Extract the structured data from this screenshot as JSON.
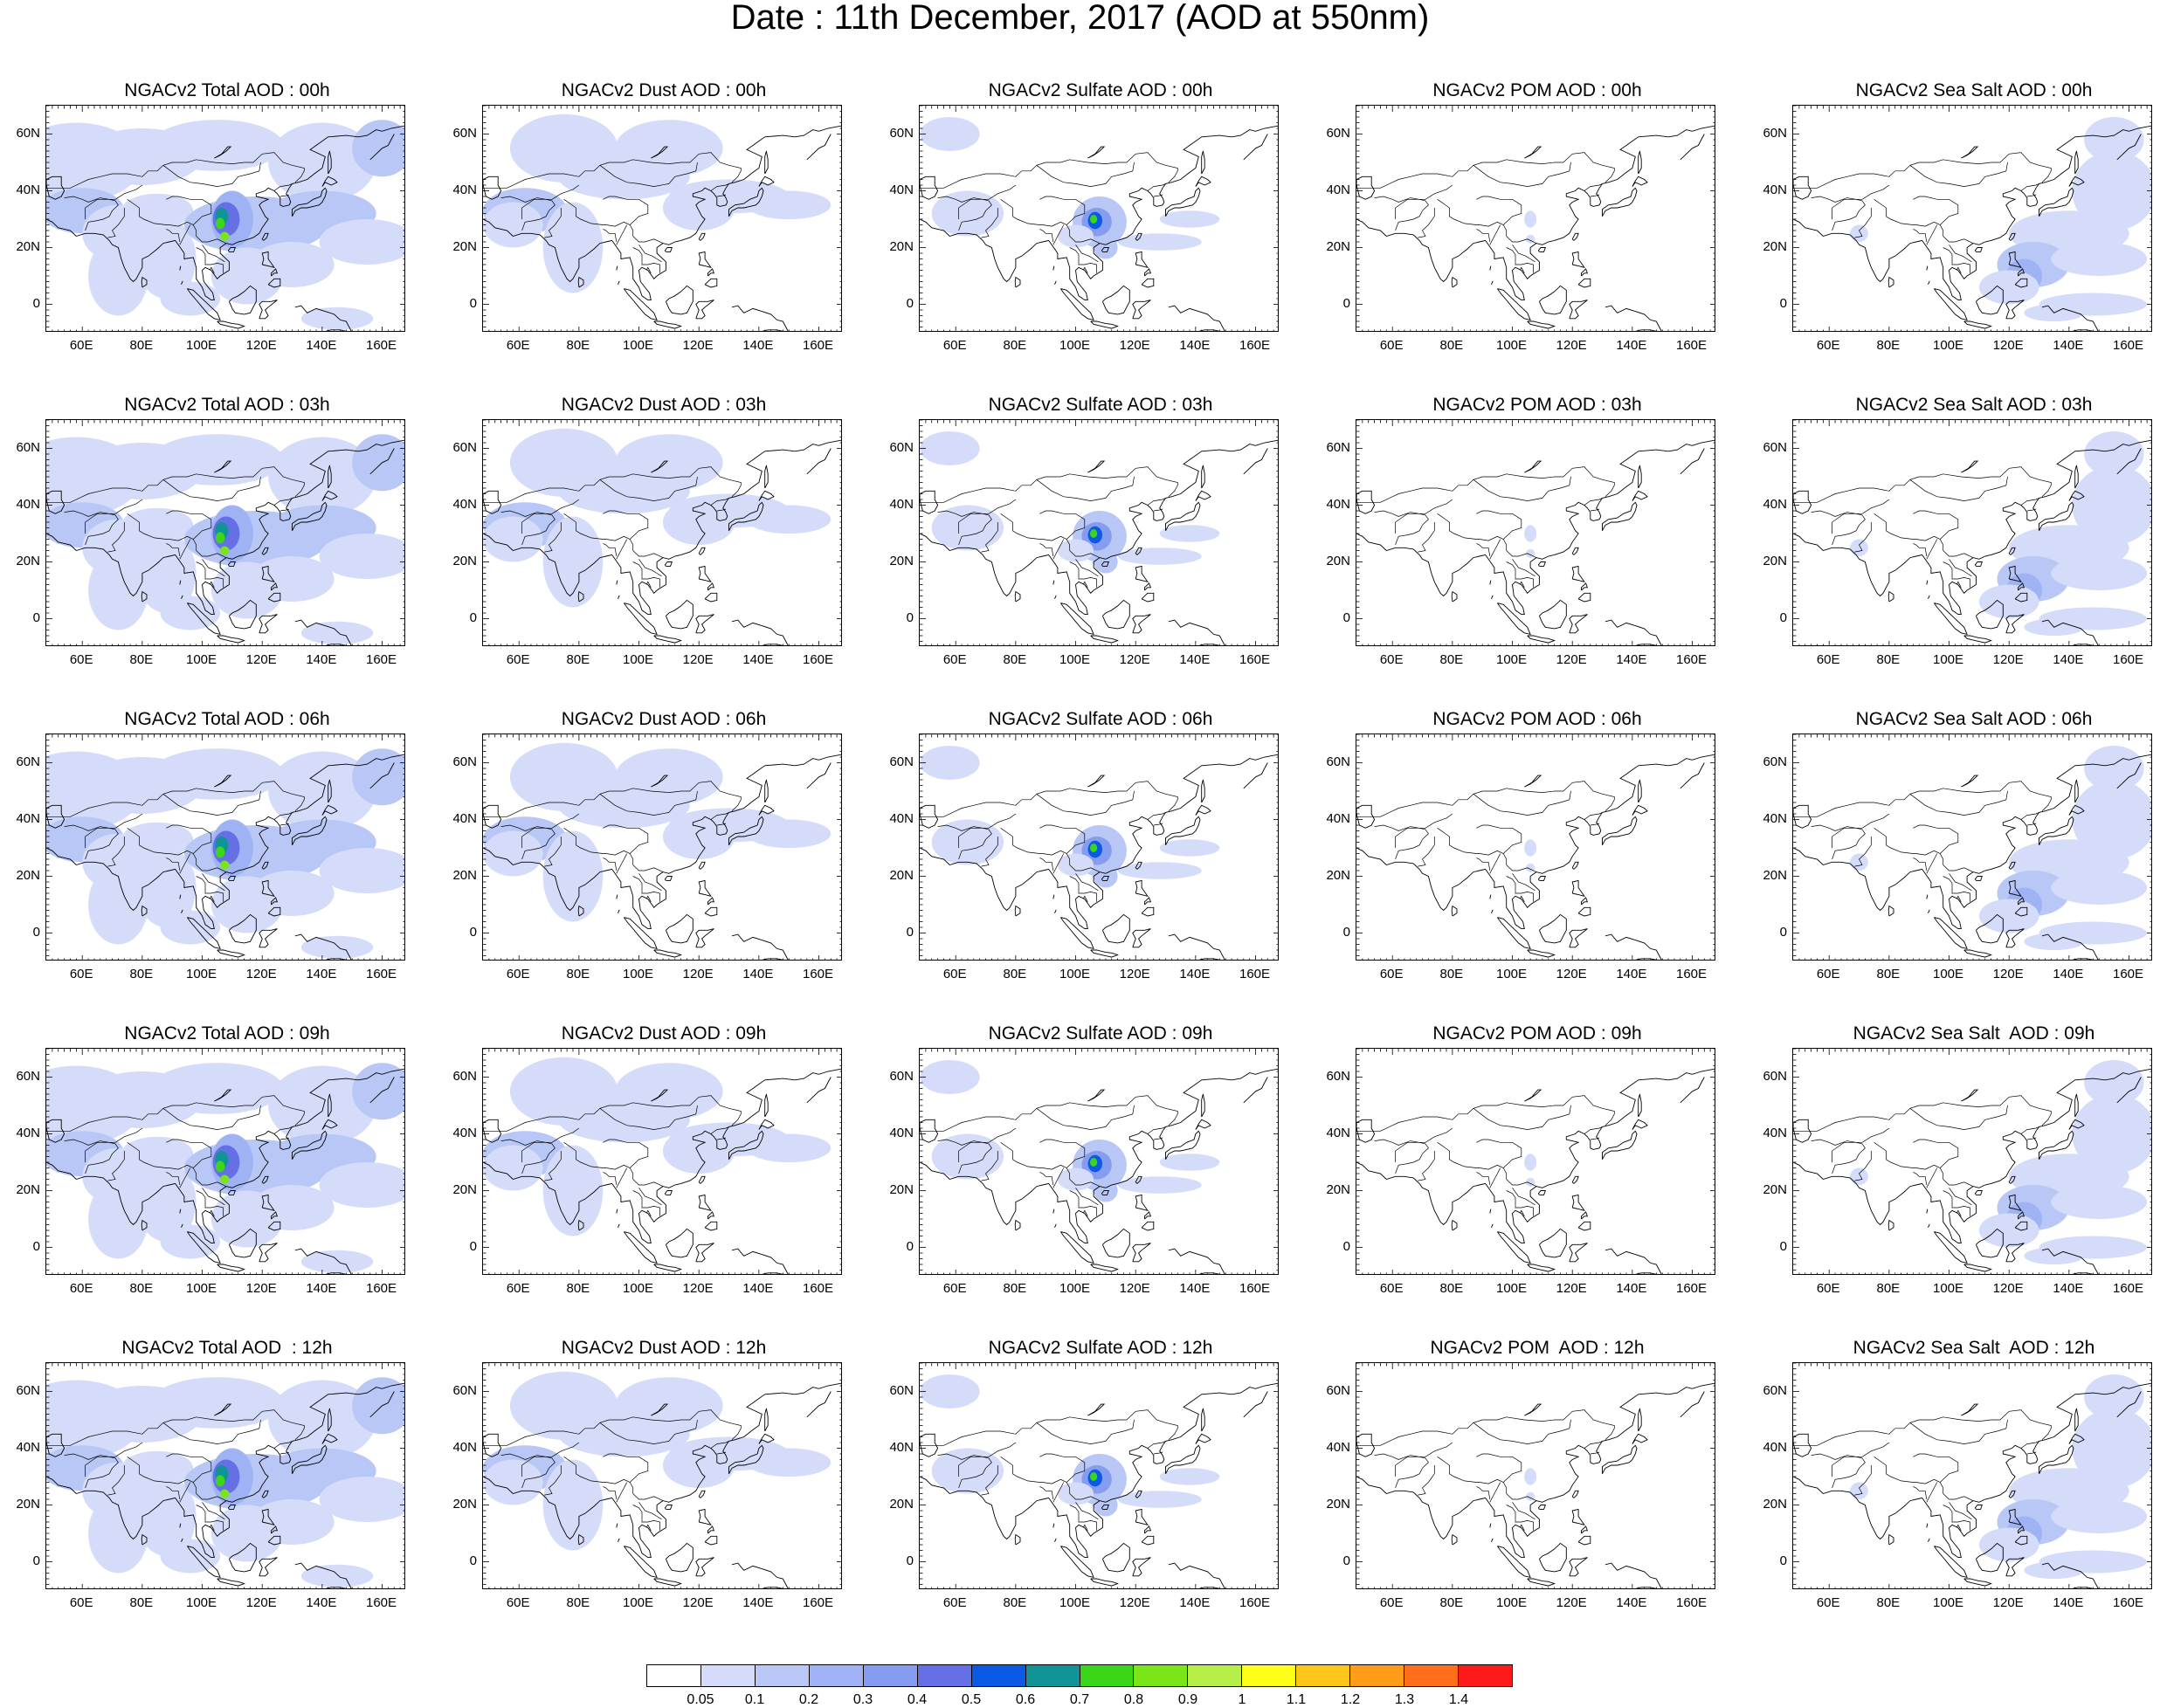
{
  "title": "Date : 11th December, 2017 (AOD at 550nm)",
  "lat_labels": [
    "60N",
    "40N",
    "20N",
    "0"
  ],
  "lon_labels": [
    "60E",
    "80E",
    "100E",
    "120E",
    "140E",
    "160E"
  ],
  "colorbar": {
    "labels": [
      "0.05",
      "0.1",
      "0.2",
      "0.3",
      "0.4",
      "0.5",
      "0.6",
      "0.7",
      "0.8",
      "0.9",
      "1",
      "1.1",
      "1.2",
      "1.3",
      "1.4"
    ],
    "colors": [
      "#ffffff",
      "#d4dcfa",
      "#b9c7f6",
      "#9fb2f3",
      "#859cef",
      "#6670e6",
      "#0a5ae6",
      "#119496",
      "#3ad61a",
      "#7ae61a",
      "#b6ee4a",
      "#ffff1a",
      "#ffc61a",
      "#ff9d1a",
      "#ff6e1a",
      "#ff1a1a"
    ]
  },
  "panels": [
    {
      "title": "NGACv2 Total AOD : 00h"
    },
    {
      "title": "NGACv2 Dust AOD : 00h"
    },
    {
      "title": "NGACv2 Sulfate AOD : 00h"
    },
    {
      "title": "NGACv2 POM AOD : 00h"
    },
    {
      "title": "NGACv2 Sea Salt AOD : 00h"
    },
    {
      "title": "NGACv2 Total AOD : 03h"
    },
    {
      "title": "NGACv2 Dust AOD : 03h"
    },
    {
      "title": "NGACv2 Sulfate AOD : 03h"
    },
    {
      "title": "NGACv2 POM AOD : 03h"
    },
    {
      "title": "NGACv2 Sea Salt AOD : 03h"
    },
    {
      "title": "NGACv2 Total AOD : 06h"
    },
    {
      "title": "NGACv2 Dust AOD : 06h"
    },
    {
      "title": "NGACv2 Sulfate AOD : 06h"
    },
    {
      "title": "NGACv2 POM AOD : 06h"
    },
    {
      "title": "NGACv2 Sea Salt AOD : 06h"
    },
    {
      "title": "NGACv2 Total AOD : 09h"
    },
    {
      "title": "NGACv2 Dust AOD : 09h"
    },
    {
      "title": "NGACv2 Sulfate AOD : 09h"
    },
    {
      "title": "NGACv2 POM AOD : 09h"
    },
    {
      "title": "NGACv2 Sea Salt  AOD : 09h"
    },
    {
      "title": "NGACv2 Total AOD  : 12h"
    },
    {
      "title": "NGACv2 Dust AOD : 12h"
    },
    {
      "title": "NGACv2 Sulfate AOD : 12h"
    },
    {
      "title": "NGACv2 POM  AOD : 12h"
    },
    {
      "title": "NGACv2 Sea Salt  AOD : 12h"
    }
  ]
}
